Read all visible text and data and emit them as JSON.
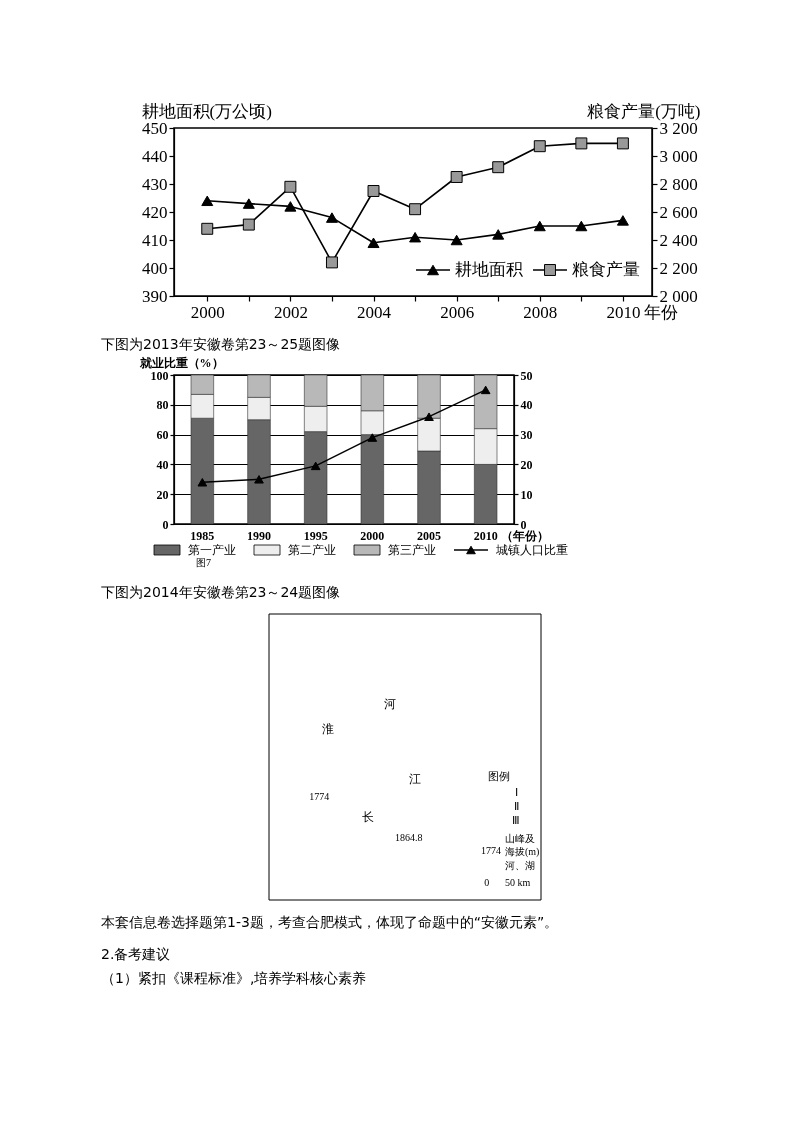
{
  "chart_data": [
    {
      "type": "line",
      "x": [
        2000,
        2001,
        2002,
        2003,
        2004,
        2005,
        2006,
        2007,
        2008,
        2009,
        2010
      ],
      "xlim": [
        1999.2,
        2010.7
      ],
      "xticks": [
        2000,
        {
          "value": 2001,
          "label": null
        },
        2002,
        {
          "value": 2003,
          "label": null
        },
        2004,
        {
          "value": 2005,
          "label": null
        },
        2006,
        {
          "value": 2007,
          "label": null
        },
        2008,
        {
          "value": 2009,
          "label": null
        },
        2010
      ],
      "xlabel": "年份",
      "ylabel": "耕地面积(万公顷)",
      "ylim": [
        390,
        450
      ],
      "yticks": [
        390,
        400,
        410,
        420,
        430,
        440,
        450
      ],
      "y2label": "粮食产量(万吨)",
      "y2lim": [
        2000,
        3200
      ],
      "y2ticks": [
        {
          "value": 2000,
          "label": "2 000"
        },
        {
          "value": 2200,
          "label": "2 200"
        },
        {
          "value": 2400,
          "label": "2 400"
        },
        {
          "value": 2600,
          "label": "2 600"
        },
        {
          "value": 2800,
          "label": "2 800"
        },
        {
          "value": 3000,
          "label": "3 000"
        },
        {
          "value": 3200,
          "label": "3 200"
        }
      ],
      "legend": "bottom right",
      "series": [
        {
          "name": "耕地面积",
          "color": "#000000",
          "marker": "triangle",
          "values": [
            424,
            423,
            422,
            418,
            409,
            411,
            410,
            412,
            415,
            415,
            417
          ]
        },
        {
          "name": "粮食产量",
          "color": "#999999",
          "marker": "square",
          "axis": "y2",
          "values": [
            2480,
            2510,
            2780,
            2240,
            2750,
            2620,
            2850,
            2920,
            3070,
            3090,
            3090
          ]
        }
      ]
    },
    {
      "type": "bar",
      "title": "下图为2013年安徽卷第23～25题图像",
      "categories": [
        "1985",
        "1990",
        "1995",
        "2000",
        "2005",
        "2010"
      ],
      "stacked": true,
      "xlabel": "（年份）",
      "ylabel": "就业比重（%）",
      "ylim": [
        0,
        100
      ],
      "yticks": [
        0,
        20,
        40,
        60,
        80,
        100
      ],
      "y2lim": [
        0,
        50
      ],
      "y2ticks": [
        0,
        10,
        20,
        30,
        40,
        50
      ],
      "grid": "y",
      "legend": "bottom",
      "series": [
        {
          "name": "第一产业",
          "color": "#666666",
          "values": [
            71,
            70,
            62,
            60,
            49,
            40
          ]
        },
        {
          "name": "第二产业",
          "color": "#eeeeee",
          "values": [
            16,
            15,
            17,
            16,
            22,
            24
          ]
        },
        {
          "name": "第三产业",
          "color": "#b8b8b8",
          "values": [
            13,
            15,
            21,
            24,
            29,
            36
          ]
        },
        {
          "name": "城镇人口比重",
          "type": "line",
          "axis": "y2",
          "color": "#000000",
          "marker": "triangle",
          "values": [
            14,
            15,
            19.5,
            29,
            36,
            45
          ]
        }
      ],
      "annotations": [
        "图7"
      ]
    },
    {
      "type": "other",
      "title": "下图为2014年安徽卷第23～24题图像",
      "annotations": [
        "淮",
        "河",
        "江",
        "长",
        "1774",
        "1864.8",
        "图例",
        "Ⅰ",
        "Ⅱ",
        "Ⅲ",
        "1774",
        "山峰及",
        "海拔(m)",
        "河、湖",
        "0",
        "50 km",
        "本套信息卷选择题第1-3题，考查合肥模式，体现了命题中的“安徽元素”。",
        "2.备考建议",
        "（1）紧扣《课程标准》,培养学科核心素养"
      ]
    }
  ]
}
